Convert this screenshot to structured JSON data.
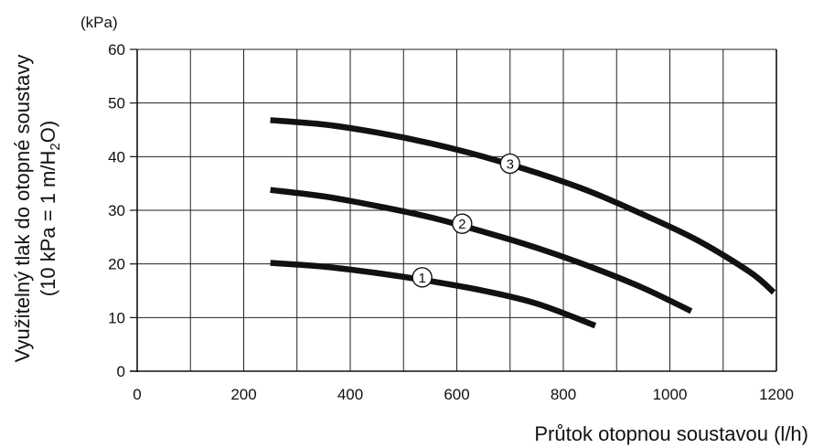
{
  "chart_data": {
    "type": "line",
    "unit_label": "(kPa)",
    "xlabel": "Průtok otopnou soustavou (l/h)",
    "ylabel_line1": "Využitelný tlak do otopné soustavy",
    "ylabel_line2_prefix": "(10 kPa = 1 m/H",
    "ylabel_line2_sub": "2",
    "ylabel_line2_suffix": "O)",
    "xlim": [
      0,
      1200
    ],
    "ylim": [
      0,
      60
    ],
    "x_ticks": [
      0,
      200,
      400,
      600,
      800,
      1000,
      1200
    ],
    "y_ticks": [
      0,
      10,
      20,
      30,
      40,
      50,
      60
    ],
    "grid": true,
    "series": [
      {
        "name": "1",
        "label_at": {
          "x": 535,
          "y": 17.5
        },
        "points": [
          [
            250,
            20.2
          ],
          [
            350,
            19.5
          ],
          [
            450,
            18.3
          ],
          [
            550,
            16.8
          ],
          [
            650,
            15.0
          ],
          [
            750,
            12.6
          ],
          [
            860,
            8.5
          ]
        ]
      },
      {
        "name": "2",
        "label_at": {
          "x": 610,
          "y": 27.5
        },
        "points": [
          [
            250,
            33.8
          ],
          [
            350,
            32.6
          ],
          [
            450,
            30.8
          ],
          [
            550,
            28.7
          ],
          [
            650,
            26.0
          ],
          [
            750,
            23.0
          ],
          [
            850,
            19.5
          ],
          [
            950,
            15.5
          ],
          [
            1040,
            11.2
          ]
        ]
      },
      {
        "name": "3",
        "label_at": {
          "x": 700,
          "y": 38.7
        },
        "points": [
          [
            250,
            46.8
          ],
          [
            350,
            46.0
          ],
          [
            450,
            44.5
          ],
          [
            550,
            42.5
          ],
          [
            650,
            40.0
          ],
          [
            750,
            37.0
          ],
          [
            850,
            33.5
          ],
          [
            950,
            29.2
          ],
          [
            1050,
            24.5
          ],
          [
            1150,
            18.5
          ],
          [
            1195,
            14.7
          ]
        ]
      }
    ]
  }
}
